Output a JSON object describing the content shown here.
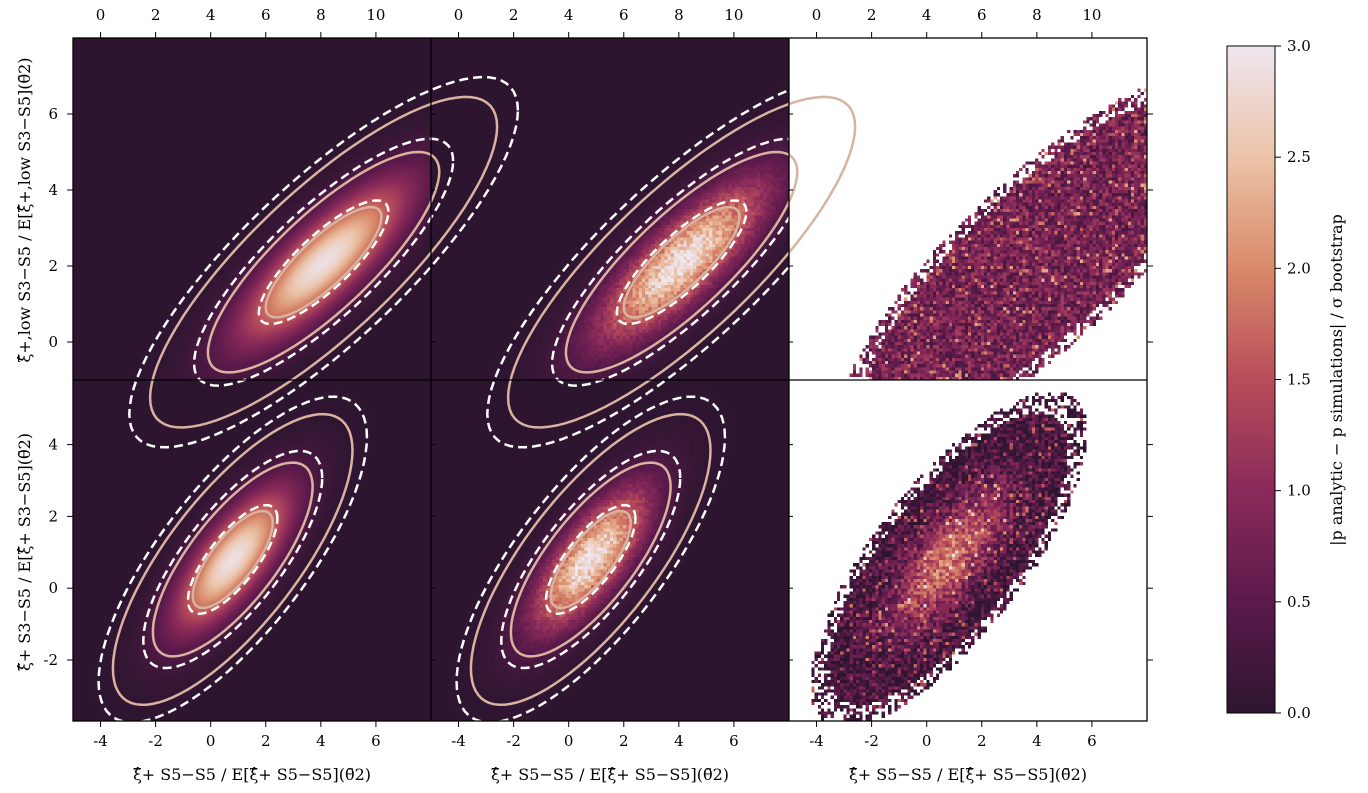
{
  "chart_data": {
    "type": "heatmap",
    "layout": {
      "rows": 2,
      "cols": 3
    },
    "colormap": {
      "name": "rocket-like",
      "stops": [
        "#2d1530",
        "#5b1a4b",
        "#8a2a5a",
        "#b84d5a",
        "#d98a6a",
        "#ecc3a8",
        "#eee6f0"
      ]
    },
    "contour_colors": {
      "analytic": "#d9b3a0",
      "simulation": "#ffffff"
    },
    "top_axis": {
      "ticks": [
        0,
        2,
        4,
        6,
        8,
        10
      ],
      "xlim": [
        -1,
        12
      ]
    },
    "bottom_axis": {
      "ticks": [
        "-4",
        "-2",
        "0",
        "2",
        "4",
        "6"
      ],
      "xlim": [
        -5,
        8
      ]
    },
    "row_ylim": [
      [
        -1,
        8
      ],
      [
        -3.7,
        5.8
      ]
    ],
    "row_yticks": [
      [
        0,
        2,
        4,
        6
      ],
      [
        -2,
        0,
        2,
        4
      ]
    ],
    "row_labels": [
      "ξ̂+,low S3−S5 / E[ξ̂+,low S3−S5](θ̄2)",
      "ξ̂+ S3−S5 / E[ξ̂+ S3−S5](θ̄2)"
    ],
    "xlabel": "ξ̂+ S5−S5 / E[ξ̂+ S5−S5](θ̄2)",
    "colorbar": {
      "label": "|p analytic − p simulations| / σ bootstrap",
      "ticks": [
        "0.0",
        "0.5",
        "1.0",
        "1.5",
        "2.0",
        "2.5",
        "3.0"
      ],
      "range": [
        0,
        3
      ]
    },
    "distributions": [
      {
        "center": [
          4.1,
          2.1
        ],
        "rho": 0.82,
        "sx": 2.1,
        "sy": 1.45
      },
      {
        "center": [
          0.8,
          0.8
        ],
        "rho": 0.75,
        "sx": 1.45,
        "sy": 1.35
      }
    ],
    "contour_levels": [
      1,
      2,
      3
    ],
    "panels": [
      {
        "row": 0,
        "col": 0,
        "kind": "analytic"
      },
      {
        "row": 0,
        "col": 1,
        "kind": "simulation"
      },
      {
        "row": 0,
        "col": 2,
        "kind": "difference"
      },
      {
        "row": 1,
        "col": 0,
        "kind": "analytic"
      },
      {
        "row": 1,
        "col": 1,
        "kind": "simulation"
      },
      {
        "row": 1,
        "col": 2,
        "kind": "difference"
      }
    ]
  }
}
